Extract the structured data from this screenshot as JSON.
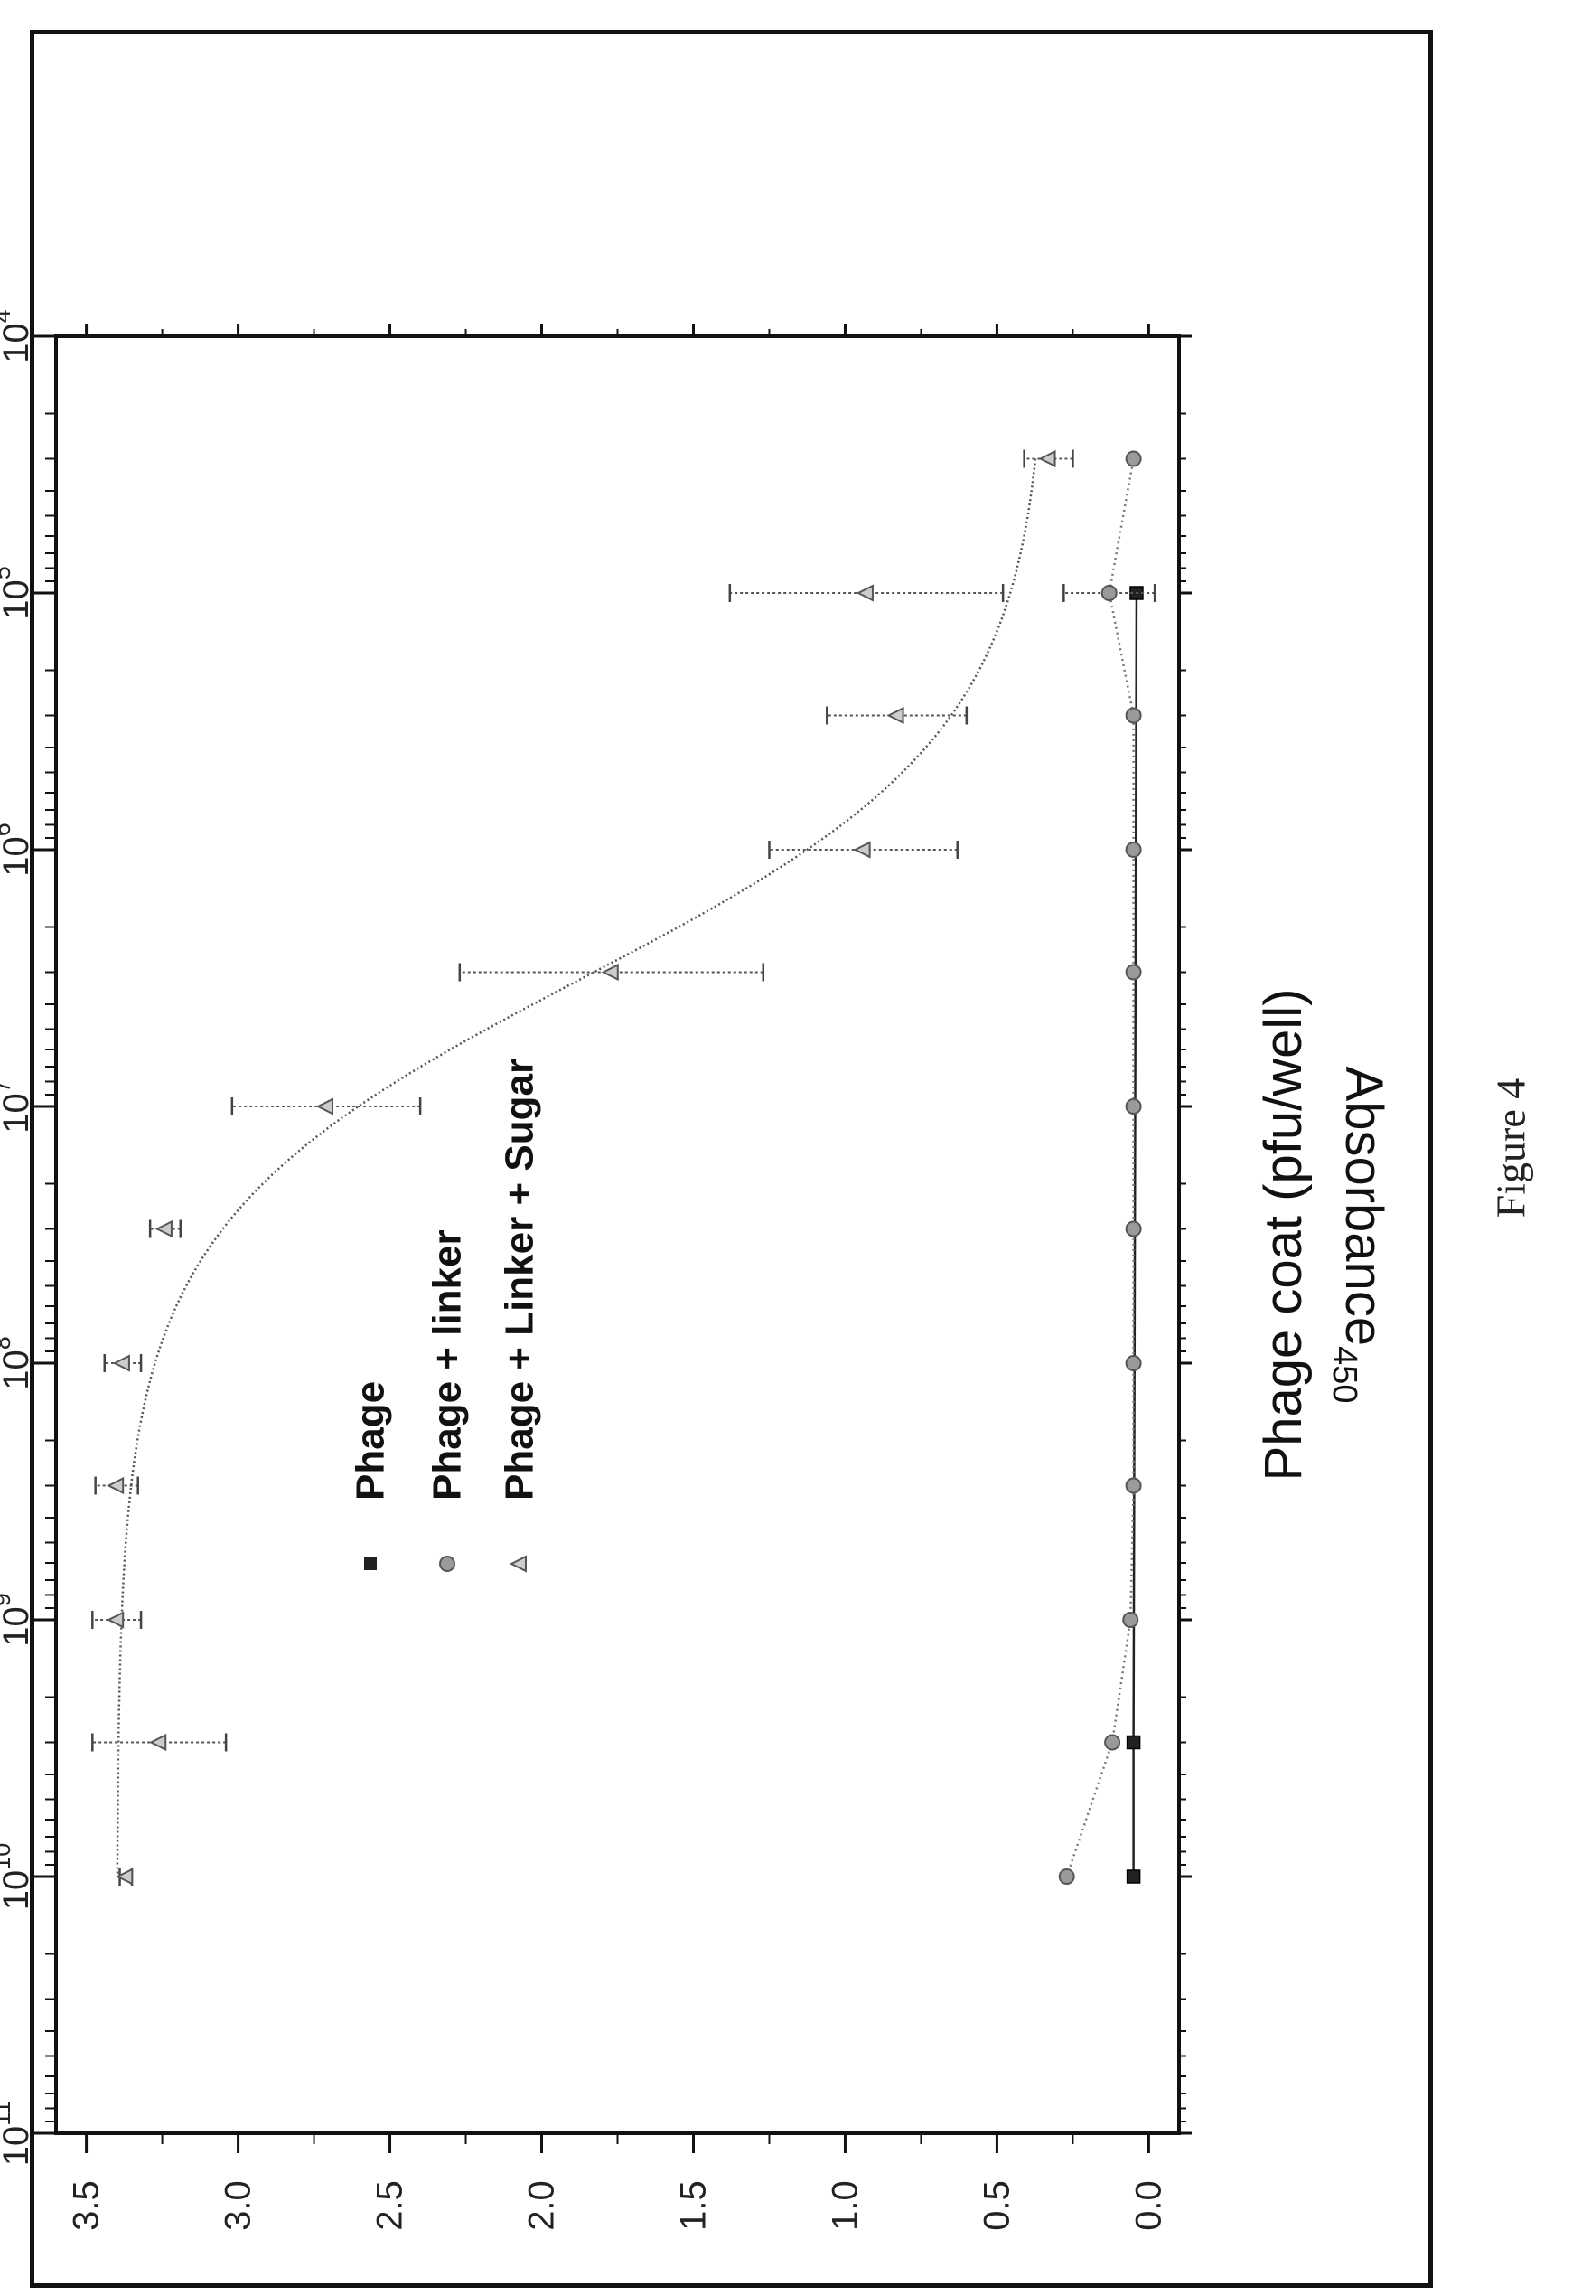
{
  "figure_caption": "Figure 4",
  "chart_data": {
    "type": "scatter",
    "orientation": "rotated-90-ccw",
    "xlabel": "Phage coat (pfu/well)",
    "ylabel": "Absorbance",
    "ylabel_subscript": "450",
    "x_scale": "log",
    "x_reversed": true,
    "xlim": [
      100000000000.0,
      10000.0
    ],
    "ylim": [
      -0.1,
      3.6
    ],
    "x_ticks": [
      {
        "value": 100000000000.0,
        "base": "10",
        "exp": "11"
      },
      {
        "value": 10000000000.0,
        "base": "10",
        "exp": "10"
      },
      {
        "value": 1000000000.0,
        "base": "10",
        "exp": "9"
      },
      {
        "value": 100000000.0,
        "base": "10",
        "exp": "8"
      },
      {
        "value": 10000000.0,
        "base": "10",
        "exp": "7"
      },
      {
        "value": 1000000.0,
        "base": "10",
        "exp": "6"
      },
      {
        "value": 100000.0,
        "base": "10",
        "exp": "5"
      },
      {
        "value": 10000.0,
        "base": "10",
        "exp": "4"
      }
    ],
    "y_ticks": [
      "0.0",
      "0.5",
      "1.0",
      "1.5",
      "2.0",
      "2.5",
      "3.0",
      "3.5"
    ],
    "legend_position": "upper-left",
    "grid": false,
    "series": [
      {
        "name": "Phage",
        "marker": "square",
        "x": [
          10000000000.0,
          3000000000.0,
          100000.0
        ],
        "y": [
          0.05,
          0.05,
          0.04
        ],
        "yerr": [
          0,
          0,
          0
        ]
      },
      {
        "name": "Phage + linker",
        "marker": "circle",
        "x": [
          10000000000.0,
          3000000000.0,
          1000000000.0,
          300000000.0,
          100000000.0,
          30000000.0,
          10000000.0,
          3000000.0,
          1000000.0,
          300000.0,
          100000.0,
          30000.0
        ],
        "y": [
          0.27,
          0.12,
          0.06,
          0.05,
          0.05,
          0.05,
          0.05,
          0.05,
          0.05,
          0.05,
          0.13,
          0.05
        ],
        "yerr": [
          0,
          0,
          0,
          0,
          0,
          0,
          0,
          0,
          0,
          0,
          0.15,
          0
        ]
      },
      {
        "name": "Phage + Linker + Sugar",
        "marker": "triangle",
        "x": [
          10000000000.0,
          3000000000.0,
          1000000000.0,
          300000000.0,
          100000000.0,
          30000000.0,
          10000000.0,
          3000000.0,
          1000000.0,
          300000.0,
          100000.0,
          30000.0
        ],
        "y": [
          3.37,
          3.26,
          3.4,
          3.4,
          3.38,
          3.24,
          2.71,
          1.77,
          0.94,
          0.83,
          0.93,
          0.33
        ],
        "yerr": [
          0.02,
          0.22,
          0.08,
          0.07,
          0.06,
          0.05,
          0.31,
          0.5,
          0.31,
          0.23,
          0.45,
          0.08
        ]
      }
    ]
  }
}
